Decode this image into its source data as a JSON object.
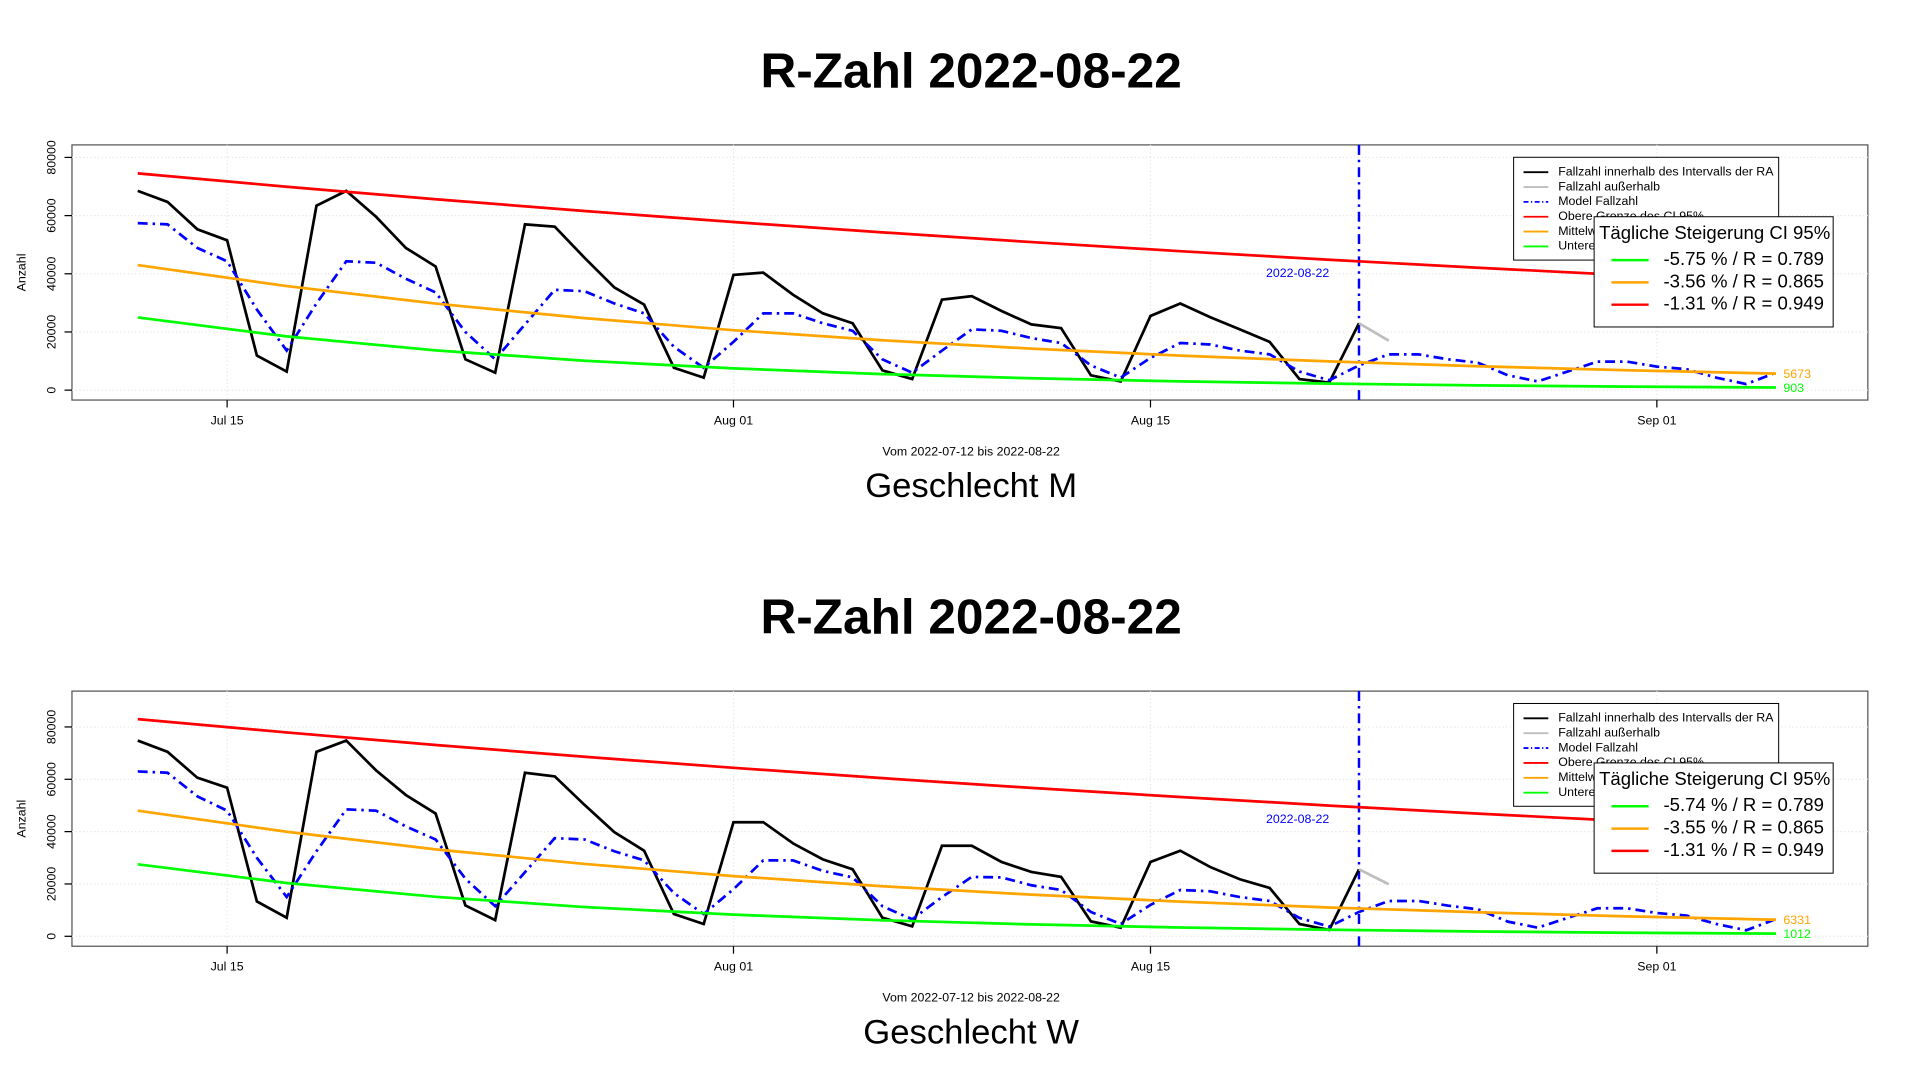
{
  "chart_data": [
    {
      "type": "line",
      "title": "R-Zahl 2022-08-22",
      "subtitle": "Geschlecht M",
      "xlabel": "Vom 2022-07-12 bis 2022-08-22",
      "ylabel": "Anzahl",
      "xlim": [
        "2022-07-09T19:00",
        "2022-09-08T02:00"
      ],
      "xticks": [
        {
          "value": "2022-07-15",
          "label": "Jul 15"
        },
        {
          "value": "2022-08-01",
          "label": "Aug 01"
        },
        {
          "value": "2022-08-15",
          "label": "Aug 15"
        },
        {
          "value": "2022-09-01",
          "label": "Sep 01"
        }
      ],
      "ylim": [
        -3400,
        84300
      ],
      "yticks": [
        0,
        20000,
        40000,
        60000,
        80000
      ],
      "grid": true,
      "vline": {
        "x": "2022-08-22",
        "label": "2022-08-22",
        "color": "#0000ff"
      },
      "series": [
        {
          "name": "Fallzahl innerhalb des Intervalls der RA",
          "color": "#000000",
          "dash": "solid",
          "x": [
            "2022-07-12",
            "2022-07-13",
            "2022-07-14",
            "2022-07-15",
            "2022-07-16",
            "2022-07-17",
            "2022-07-18",
            "2022-07-19",
            "2022-07-20",
            "2022-07-21",
            "2022-07-22",
            "2022-07-23",
            "2022-07-24",
            "2022-07-25",
            "2022-07-26",
            "2022-07-27",
            "2022-07-28",
            "2022-07-29",
            "2022-07-30",
            "2022-07-31",
            "2022-08-01",
            "2022-08-02",
            "2022-08-03",
            "2022-08-04",
            "2022-08-05",
            "2022-08-06",
            "2022-08-07",
            "2022-08-08",
            "2022-08-09",
            "2022-08-10",
            "2022-08-11",
            "2022-08-12",
            "2022-08-13",
            "2022-08-14",
            "2022-08-15",
            "2022-08-16",
            "2022-08-17",
            "2022-08-18",
            "2022-08-19",
            "2022-08-20",
            "2022-08-21",
            "2022-08-22"
          ],
          "values": [
            68500,
            64700,
            55300,
            51500,
            11900,
            6400,
            63400,
            68500,
            59600,
            48900,
            42500,
            10600,
            6000,
            57000,
            56200,
            45500,
            35300,
            29400,
            7700,
            4300,
            39600,
            40400,
            32800,
            26400,
            23000,
            6800,
            3800,
            31100,
            32300,
            27200,
            22600,
            21300,
            5100,
            3000,
            25500,
            29800,
            25100,
            20900,
            16600,
            3800,
            2600,
            23000
          ]
        },
        {
          "name": "Fallzahl außerhalb",
          "color": "#bebebe",
          "dash": "solid",
          "x": [
            "2022-08-22",
            "2022-08-23"
          ],
          "values": [
            23000,
            17000
          ]
        },
        {
          "name": "Model Fallzahl",
          "color": "#0000ff",
          "dash": "dotdash",
          "x": [
            "2022-07-12",
            "2022-07-13",
            "2022-07-14",
            "2022-07-15",
            "2022-07-16",
            "2022-07-17",
            "2022-07-18",
            "2022-07-19",
            "2022-07-20",
            "2022-07-21",
            "2022-07-22",
            "2022-07-23",
            "2022-07-24",
            "2022-07-25",
            "2022-07-26",
            "2022-07-27",
            "2022-07-28",
            "2022-07-29",
            "2022-07-30",
            "2022-07-31",
            "2022-08-01",
            "2022-08-02",
            "2022-08-03",
            "2022-08-04",
            "2022-08-05",
            "2022-08-06",
            "2022-08-07",
            "2022-08-08",
            "2022-08-09",
            "2022-08-10",
            "2022-08-11",
            "2022-08-12",
            "2022-08-13",
            "2022-08-14",
            "2022-08-15",
            "2022-08-16",
            "2022-08-17",
            "2022-08-18",
            "2022-08-19",
            "2022-08-20",
            "2022-08-21",
            "2022-08-22",
            "2022-08-23",
            "2022-08-24",
            "2022-08-25",
            "2022-08-26",
            "2022-08-27",
            "2022-08-28",
            "2022-08-29",
            "2022-08-30",
            "2022-08-31",
            "2022-09-01",
            "2022-09-02",
            "2022-09-03",
            "2022-09-04",
            "2022-09-05"
          ],
          "values": [
            57400,
            57000,
            48900,
            44300,
            27700,
            13600,
            29800,
            44300,
            43800,
            38300,
            33600,
            20000,
            10600,
            22600,
            34500,
            34000,
            29800,
            26400,
            14900,
            7700,
            16600,
            26400,
            26400,
            23000,
            20400,
            10600,
            6000,
            13600,
            20900,
            20400,
            17900,
            16200,
            8500,
            4300,
            11100,
            16200,
            15700,
            13600,
            12300,
            6400,
            3400,
            8500,
            12300,
            12300,
            10600,
            9400,
            5100,
            3000,
            6400,
            9800,
            9800,
            8100,
            7200,
            4300,
            2100,
            6000
          ]
        },
        {
          "name": "Obere Grenze des CI 95%",
          "color": "#ff0000",
          "dash": "solid",
          "end_label": true,
          "x": [
            "2022-07-12",
            "2022-07-17",
            "2022-07-22",
            "2022-07-27",
            "2022-08-01",
            "2022-08-06",
            "2022-08-11",
            "2022-08-16",
            "2022-08-21",
            "2022-08-26",
            "2022-08-31",
            "2022-09-05"
          ],
          "values": [
            74500,
            69920,
            65620,
            61580,
            57790,
            54240,
            50900,
            47770,
            44830,
            42080,
            39490,
            37025
          ]
        },
        {
          "name": "Mittelwert",
          "color": "#ffa500",
          "dash": "solid",
          "end_label": true,
          "x": [
            "2022-07-12",
            "2022-07-17",
            "2022-07-22",
            "2022-07-27",
            "2022-08-01",
            "2022-08-06",
            "2022-08-11",
            "2022-08-16",
            "2022-08-21",
            "2022-08-26",
            "2022-08-31",
            "2022-09-05"
          ],
          "values": [
            43000,
            35780,
            29770,
            24770,
            20610,
            17150,
            14270,
            11875,
            9881,
            8222,
            6841,
            5673
          ]
        },
        {
          "name": "Untere Grenze des CI 95%",
          "color": "#00ff00",
          "dash": "solid",
          "end_label": true,
          "x": [
            "2022-07-12",
            "2022-07-17",
            "2022-07-22",
            "2022-07-27",
            "2022-08-01",
            "2022-08-06",
            "2022-08-11",
            "2022-08-16",
            "2022-08-21",
            "2022-08-26",
            "2022-08-31",
            "2022-09-05"
          ],
          "values": [
            25000,
            18485,
            13668,
            10106,
            7473,
            5525,
            4085,
            3021,
            2234,
            1652,
            1221,
            903
          ]
        }
      ],
      "ci_legend": {
        "title": "Tägliche Steigerung CI  95%",
        "items": [
          {
            "label": "-5.75 % / R = 0.789",
            "color": "#00ff00"
          },
          {
            "label": "-3.56 % / R = 0.865",
            "color": "#ffa500"
          },
          {
            "label": "-1.31 % / R = 0.949",
            "color": "#ff0000"
          }
        ]
      }
    },
    {
      "type": "line",
      "title": "R-Zahl 2022-08-22",
      "subtitle": "Geschlecht W",
      "xlabel": "Vom 2022-07-12 bis 2022-08-22",
      "ylabel": "Anzahl",
      "xlim": [
        "2022-07-09T19:00",
        "2022-09-08T02:00"
      ],
      "xticks": [
        {
          "value": "2022-07-15",
          "label": "Jul 15"
        },
        {
          "value": "2022-08-01",
          "label": "Aug 01"
        },
        {
          "value": "2022-08-15",
          "label": "Aug 15"
        },
        {
          "value": "2022-09-01",
          "label": "Sep 01"
        }
      ],
      "ylim": [
        -3800,
        93700
      ],
      "yticks": [
        0,
        20000,
        40000,
        60000,
        80000
      ],
      "grid": true,
      "vline": {
        "x": "2022-08-22",
        "label": "2022-08-22",
        "color": "#0000ff"
      },
      "series": [
        {
          "name": "Fallzahl innerhalb des Intervalls der RA",
          "color": "#000000",
          "dash": "solid",
          "x": [
            "2022-07-12",
            "2022-07-13",
            "2022-07-14",
            "2022-07-15",
            "2022-07-16",
            "2022-07-17",
            "2022-07-18",
            "2022-07-19",
            "2022-07-20",
            "2022-07-21",
            "2022-07-22",
            "2022-07-23",
            "2022-07-24",
            "2022-07-25",
            "2022-07-26",
            "2022-07-27",
            "2022-07-28",
            "2022-07-29",
            "2022-07-30",
            "2022-07-31",
            "2022-08-01",
            "2022-08-02",
            "2022-08-03",
            "2022-08-04",
            "2022-08-05",
            "2022-08-06",
            "2022-08-07",
            "2022-08-08",
            "2022-08-09",
            "2022-08-10",
            "2022-08-11",
            "2022-08-12",
            "2022-08-13",
            "2022-08-14",
            "2022-08-15",
            "2022-08-16",
            "2022-08-17",
            "2022-08-18",
            "2022-08-19",
            "2022-08-20",
            "2022-08-21",
            "2022-08-22"
          ],
          "values": [
            74800,
            70500,
            60600,
            56800,
            13300,
            7100,
            70500,
            74800,
            63400,
            54000,
            46900,
            11800,
            6200,
            62500,
            61100,
            50200,
            39800,
            32700,
            8500,
            4700,
            43600,
            43600,
            35500,
            29400,
            25600,
            7100,
            3800,
            34600,
            34600,
            28400,
            24600,
            22700,
            5700,
            3300,
            28400,
            32700,
            26500,
            21800,
            18500,
            4700,
            2400,
            25600
          ]
        },
        {
          "name": "Fallzahl außerhalb",
          "color": "#bebebe",
          "dash": "solid",
          "x": [
            "2022-08-22",
            "2022-08-23"
          ],
          "values": [
            25600,
            19900
          ]
        },
        {
          "name": "Model Fallzahl",
          "color": "#0000ff",
          "dash": "dotdash",
          "x": [
            "2022-07-12",
            "2022-07-13",
            "2022-07-14",
            "2022-07-15",
            "2022-07-16",
            "2022-07-17",
            "2022-07-18",
            "2022-07-19",
            "2022-07-20",
            "2022-07-21",
            "2022-07-22",
            "2022-07-23",
            "2022-07-24",
            "2022-07-25",
            "2022-07-26",
            "2022-07-27",
            "2022-07-28",
            "2022-07-29",
            "2022-07-30",
            "2022-07-31",
            "2022-08-01",
            "2022-08-02",
            "2022-08-03",
            "2022-08-04",
            "2022-08-05",
            "2022-08-06",
            "2022-08-07",
            "2022-08-08",
            "2022-08-09",
            "2022-08-10",
            "2022-08-11",
            "2022-08-12",
            "2022-08-13",
            "2022-08-14",
            "2022-08-15",
            "2022-08-16",
            "2022-08-17",
            "2022-08-18",
            "2022-08-19",
            "2022-08-20",
            "2022-08-21",
            "2022-08-22",
            "2022-08-23",
            "2022-08-24",
            "2022-08-25",
            "2022-08-26",
            "2022-08-27",
            "2022-08-28",
            "2022-08-29",
            "2022-08-30",
            "2022-08-31",
            "2022-09-01",
            "2022-09-02",
            "2022-09-03",
            "2022-09-04",
            "2022-09-05"
          ],
          "values": [
            63000,
            62500,
            53500,
            48000,
            30000,
            15000,
            32500,
            48500,
            48000,
            42000,
            37000,
            22000,
            11500,
            24500,
            37500,
            37000,
            32500,
            29000,
            16500,
            8500,
            18000,
            29000,
            29000,
            25000,
            22500,
            11500,
            6500,
            15000,
            22700,
            22500,
            19500,
            17700,
            9300,
            4700,
            12000,
            17700,
            17200,
            15000,
            13500,
            7000,
            3700,
            9300,
            13500,
            13500,
            11700,
            10300,
            5600,
            3300,
            7000,
            10700,
            10700,
            8900,
            7900,
            4700,
            2300,
            6600
          ]
        },
        {
          "name": "Obere Grenze des CI 95%",
          "color": "#ff0000",
          "dash": "solid",
          "end_label": true,
          "x": [
            "2022-07-12",
            "2022-07-17",
            "2022-07-22",
            "2022-07-27",
            "2022-08-01",
            "2022-08-06",
            "2022-08-11",
            "2022-08-16",
            "2022-08-21",
            "2022-08-26",
            "2022-08-31",
            "2022-09-05"
          ],
          "values": [
            83000,
            77900,
            73110,
            68610,
            64390,
            60430,
            56710,
            53230,
            49950,
            46880,
            44000,
            41293
          ]
        },
        {
          "name": "Mittelwert",
          "color": "#ffa500",
          "dash": "solid",
          "end_label": true,
          "x": [
            "2022-07-12",
            "2022-07-17",
            "2022-07-22",
            "2022-07-27",
            "2022-08-01",
            "2022-08-06",
            "2022-08-11",
            "2022-08-16",
            "2022-08-21",
            "2022-08-26",
            "2022-08-31",
            "2022-09-05"
          ],
          "values": [
            48000,
            39940,
            33230,
            27650,
            23000,
            19140,
            15920,
            13250,
            11020,
            9171,
            7630,
            6331
          ]
        },
        {
          "name": "Untere Grenze des CI 95%",
          "color": "#00ff00",
          "dash": "solid",
          "end_label": true,
          "x": [
            "2022-07-12",
            "2022-07-17",
            "2022-07-22",
            "2022-07-27",
            "2022-08-01",
            "2022-08-06",
            "2022-08-11",
            "2022-08-16",
            "2022-08-21",
            "2022-08-26",
            "2022-08-31",
            "2022-09-05"
          ],
          "values": [
            27500,
            20370,
            15090,
            11175,
            8278,
            6131,
            4541,
            3364,
            2492,
            1846,
            1367,
            1012
          ]
        }
      ],
      "ci_legend": {
        "title": "Tägliche Steigerung CI  95%",
        "items": [
          {
            "label": "-5.74 % / R = 0.789",
            "color": "#00ff00"
          },
          {
            "label": "-3.55 % / R = 0.865",
            "color": "#ffa500"
          },
          {
            "label": "-1.31 % / R = 0.949",
            "color": "#ff0000"
          }
        ]
      }
    }
  ]
}
